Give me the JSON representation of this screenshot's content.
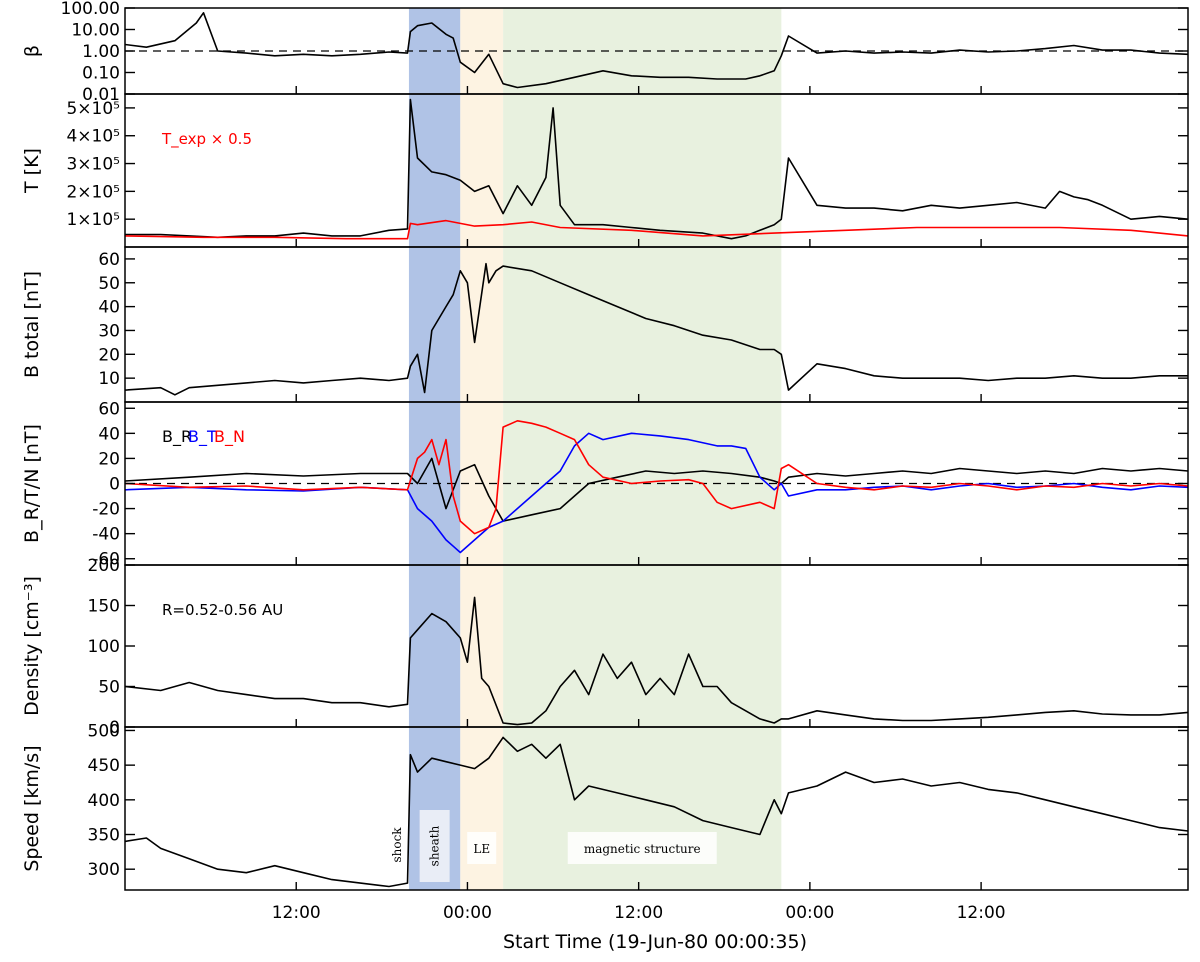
{
  "figure": {
    "xlabel": "Start Time (19-Jun-80 00:00:35)",
    "x_tick_labels": [
      "12:00",
      "00:00",
      "12:00",
      "00:00",
      "12:00"
    ]
  },
  "colors": {
    "sheath_shade": "#b0c3e6",
    "le_shade": "#fdf3e2",
    "magnetic_shade": "#e8f1df",
    "series_black": "#000000",
    "series_red": "#ff0000",
    "series_blue": "#0000ff"
  },
  "regions": [
    {
      "label": "shock",
      "start": 19.4,
      "end": 19.4,
      "style": "line"
    },
    {
      "label": "sheath",
      "start": 19.4,
      "end": 23.0,
      "style": "sheath_shade"
    },
    {
      "label": "LE",
      "start": 23.0,
      "end": 26.0,
      "style": "le_shade"
    },
    {
      "label": "magnetic structure",
      "start": 26.0,
      "end": 45.5,
      "style": "magnetic_shade"
    }
  ],
  "chart_data": [
    {
      "type": "line",
      "panel": "beta",
      "ylabel": "β",
      "yscale": "log",
      "ylim": [
        0.01,
        100
      ],
      "y_tick_labels": [
        "100.00",
        "10.00",
        "1.00",
        "0.10",
        "0.01"
      ],
      "reference_line": 1.0,
      "x_unit": "hours since 19-Jun-80 00:00:35",
      "xlim": [
        -0.5,
        74
      ],
      "series": [
        {
          "color": "black",
          "x": [
            -0.5,
            1,
            3,
            4.5,
            5,
            6,
            8,
            10,
            12,
            14,
            16,
            18,
            19.3,
            19.5,
            20,
            21,
            22,
            22.5,
            23,
            24,
            25,
            26,
            27,
            29,
            31,
            33,
            35,
            37,
            39,
            41,
            43,
            44,
            45,
            45.5,
            46,
            48,
            50,
            52,
            54,
            56,
            58,
            60,
            62,
            64,
            66,
            68,
            70,
            72,
            74
          ],
          "y": [
            2,
            1.5,
            3,
            20,
            60,
            1,
            0.8,
            0.6,
            0.7,
            0.6,
            0.7,
            0.9,
            0.8,
            8,
            15,
            20,
            6,
            4,
            0.3,
            0.1,
            0.7,
            0.03,
            0.02,
            0.03,
            0.06,
            0.12,
            0.07,
            0.06,
            0.06,
            0.05,
            0.05,
            0.07,
            0.12,
            0.6,
            5,
            0.8,
            1,
            0.8,
            0.9,
            0.8,
            1.1,
            0.9,
            1,
            1.3,
            1.8,
            1.1,
            1.1,
            0.8,
            0.7
          ]
        }
      ]
    },
    {
      "type": "line",
      "panel": "temperature",
      "ylabel": "T [K]",
      "ylim": [
        0,
        550000
      ],
      "y_tick_labels": [
        "1×10⁵",
        "2×10⁵",
        "3×10⁵",
        "4×10⁵",
        "5×10⁵"
      ],
      "annotation": "T_exp × 0.5",
      "xlim": [
        -0.5,
        74
      ],
      "series": [
        {
          "color": "black",
          "x": [
            -0.5,
            2,
            4,
            6,
            8,
            10,
            12,
            14,
            16,
            18,
            19.3,
            19.5,
            20,
            21,
            22,
            23,
            24,
            25,
            26,
            27,
            28,
            29,
            29.5,
            30,
            31,
            33,
            35,
            37,
            40,
            42,
            43,
            44,
            45,
            45.5,
            46,
            48,
            50,
            52,
            54,
            56,
            58,
            60,
            62,
            64,
            65,
            66,
            67,
            68,
            70,
            72,
            74
          ],
          "y": [
            45000,
            45000,
            40000,
            35000,
            40000,
            40000,
            50000,
            40000,
            40000,
            60000,
            65000,
            530000,
            320000,
            270000,
            260000,
            240000,
            200000,
            220000,
            120000,
            220000,
            150000,
            250000,
            500000,
            150000,
            80000,
            80000,
            70000,
            60000,
            50000,
            30000,
            40000,
            60000,
            80000,
            100000,
            320000,
            150000,
            140000,
            140000,
            130000,
            150000,
            140000,
            150000,
            160000,
            140000,
            200000,
            180000,
            170000,
            150000,
            100000,
            110000,
            100000
          ]
        },
        {
          "color": "red",
          "x": [
            -0.5,
            5,
            10,
            15,
            19.3,
            19.5,
            20,
            22,
            24,
            26,
            28,
            30,
            35,
            40,
            45,
            50,
            55,
            60,
            65,
            70,
            74
          ],
          "y": [
            40000,
            35000,
            35000,
            30000,
            30000,
            85000,
            80000,
            95000,
            75000,
            80000,
            90000,
            70000,
            60000,
            40000,
            50000,
            60000,
            70000,
            70000,
            70000,
            60000,
            40000
          ]
        }
      ]
    },
    {
      "type": "line",
      "panel": "b_total",
      "ylabel": "B total [nT]",
      "ylim": [
        0,
        65
      ],
      "y_tick_labels": [
        "10",
        "20",
        "30",
        "40",
        "50",
        "60"
      ],
      "xlim": [
        -0.5,
        74
      ],
      "series": [
        {
          "color": "black",
          "x": [
            -0.5,
            2,
            3,
            4,
            6,
            8,
            10,
            12,
            14,
            16,
            18,
            19.3,
            19.5,
            20,
            20.5,
            21,
            22,
            22.5,
            23,
            23.5,
            24,
            24.8,
            25,
            25.5,
            26,
            28,
            30,
            32,
            34,
            36,
            38,
            40,
            42,
            44,
            45,
            45.5,
            46,
            48,
            50,
            52,
            54,
            56,
            58,
            60,
            62,
            64,
            66,
            68,
            70,
            72,
            74
          ],
          "y": [
            5,
            6,
            3,
            6,
            7,
            8,
            9,
            8,
            9,
            10,
            9,
            10,
            15,
            20,
            4,
            30,
            40,
            45,
            55,
            50,
            25,
            58,
            50,
            55,
            57,
            55,
            50,
            45,
            40,
            35,
            32,
            28,
            26,
            22,
            22,
            20,
            5,
            16,
            14,
            11,
            10,
            10,
            10,
            9,
            10,
            10,
            11,
            10,
            10,
            11,
            11
          ]
        }
      ]
    },
    {
      "type": "line",
      "panel": "b_components",
      "ylabel": "B_R/T/N [nT]",
      "ylim": [
        -65,
        65
      ],
      "y_tick_labels": [
        "60",
        "40",
        "20",
        "0",
        "-20",
        "-40",
        "-60"
      ],
      "reference_line": 0,
      "legend": [
        "B_R",
        "B_T",
        "B_N"
      ],
      "xlim": [
        -0.5,
        74
      ],
      "series": [
        {
          "name": "B_R",
          "color": "black",
          "x": [
            -0.5,
            4,
            8,
            12,
            16,
            19.3,
            20,
            21,
            22,
            23,
            24,
            25,
            26,
            28,
            30,
            32,
            34,
            36,
            38,
            40,
            42,
            44,
            45,
            45.5,
            46,
            48,
            50,
            52,
            54,
            56,
            58,
            60,
            62,
            64,
            66,
            68,
            70,
            72,
            74
          ],
          "y": [
            2,
            5,
            8,
            6,
            8,
            8,
            0,
            20,
            -20,
            10,
            15,
            -10,
            -30,
            -25,
            -20,
            0,
            5,
            10,
            8,
            10,
            8,
            5,
            2,
            0,
            5,
            8,
            6,
            8,
            10,
            8,
            12,
            10,
            8,
            10,
            8,
            12,
            10,
            12,
            10
          ]
        },
        {
          "name": "B_T",
          "color": "blue",
          "x": [
            -0.5,
            4,
            8,
            12,
            16,
            19.3,
            20,
            21,
            22,
            22.5,
            23,
            24,
            25,
            26,
            28,
            30,
            31,
            32,
            33,
            35,
            37,
            39,
            41,
            42,
            43,
            44,
            45,
            45.5,
            46,
            48,
            50,
            52,
            54,
            56,
            58,
            60,
            62,
            64,
            66,
            68,
            70,
            72,
            74
          ],
          "y": [
            -5,
            -3,
            -5,
            -6,
            -3,
            -5,
            -20,
            -30,
            -45,
            -50,
            -55,
            -45,
            -35,
            -30,
            -10,
            10,
            30,
            40,
            35,
            40,
            38,
            35,
            30,
            30,
            28,
            5,
            -5,
            0,
            -10,
            -5,
            -5,
            -3,
            -2,
            -5,
            -2,
            0,
            -3,
            -2,
            0,
            -3,
            -5,
            -2,
            -3
          ]
        },
        {
          "name": "B_N",
          "color": "red",
          "x": [
            -0.5,
            4,
            8,
            12,
            16,
            19.3,
            20,
            20.5,
            21,
            21.5,
            22,
            22.5,
            23,
            24,
            25,
            25.5,
            26,
            27,
            28,
            29,
            30,
            31,
            32,
            33,
            35,
            37,
            39,
            40,
            41,
            42,
            44,
            45,
            45.5,
            46,
            48,
            50,
            52,
            54,
            56,
            58,
            60,
            62,
            64,
            66,
            68,
            70,
            72,
            74
          ],
          "y": [
            0,
            -3,
            -2,
            -5,
            -3,
            -5,
            20,
            25,
            35,
            15,
            35,
            -10,
            -30,
            -40,
            -35,
            -20,
            45,
            50,
            48,
            45,
            40,
            35,
            15,
            5,
            0,
            2,
            3,
            0,
            -15,
            -20,
            -15,
            -20,
            12,
            15,
            0,
            -3,
            -5,
            -2,
            -3,
            0,
            -2,
            -5,
            -2,
            -3,
            0,
            -2,
            0,
            -2
          ]
        }
      ]
    },
    {
      "type": "line",
      "panel": "density",
      "ylabel": "Density [cm⁻³]",
      "ylim": [
        0,
        200
      ],
      "y_tick_labels": [
        "0",
        "50",
        "100",
        "150",
        "200"
      ],
      "annotation": "R=0.52-0.56 AU",
      "xlim": [
        -0.5,
        74
      ],
      "series": [
        {
          "color": "black",
          "x": [
            -0.5,
            2,
            4,
            6,
            8,
            10,
            12,
            14,
            16,
            18,
            19.3,
            19.5,
            20,
            21,
            22,
            23,
            23.5,
            24,
            24.5,
            25,
            26,
            27,
            28,
            29,
            30,
            31,
            32,
            33,
            34,
            35,
            36,
            37,
            38,
            39,
            40,
            41,
            42,
            43,
            44,
            45,
            45.5,
            46,
            48,
            50,
            52,
            54,
            56,
            58,
            60,
            62,
            64,
            66,
            68,
            70,
            72,
            74
          ],
          "y": [
            50,
            45,
            55,
            45,
            40,
            35,
            35,
            30,
            30,
            25,
            28,
            110,
            120,
            140,
            130,
            110,
            80,
            160,
            60,
            50,
            5,
            3,
            5,
            20,
            50,
            70,
            40,
            90,
            60,
            80,
            40,
            60,
            40,
            90,
            50,
            50,
            30,
            20,
            10,
            5,
            10,
            10,
            20,
            15,
            10,
            8,
            8,
            10,
            12,
            15,
            18,
            20,
            16,
            15,
            15,
            18
          ]
        }
      ]
    },
    {
      "type": "line",
      "panel": "speed",
      "ylabel": "Speed [km/s]",
      "ylim": [
        270,
        505
      ],
      "y_tick_labels": [
        "300",
        "350",
        "400",
        "450",
        "500"
      ],
      "xlim": [
        -0.5,
        74
      ],
      "series": [
        {
          "color": "black",
          "x": [
            -0.5,
            1,
            2,
            4,
            6,
            8,
            10,
            12,
            14,
            16,
            18,
            19.3,
            19.5,
            20,
            21,
            22,
            23,
            24,
            25,
            26,
            27,
            28,
            29,
            30,
            31,
            32,
            34,
            36,
            38,
            40,
            42,
            44,
            45,
            45.5,
            46,
            48,
            50,
            52,
            54,
            56,
            58,
            60,
            62,
            64,
            66,
            68,
            70,
            72,
            74
          ],
          "y": [
            340,
            345,
            330,
            315,
            300,
            295,
            305,
            295,
            285,
            280,
            275,
            280,
            465,
            440,
            460,
            455,
            450,
            445,
            460,
            490,
            470,
            480,
            460,
            480,
            400,
            420,
            410,
            400,
            390,
            370,
            360,
            350,
            400,
            380,
            410,
            420,
            440,
            425,
            430,
            420,
            425,
            415,
            410,
            400,
            390,
            380,
            370,
            360,
            355
          ]
        }
      ]
    }
  ]
}
